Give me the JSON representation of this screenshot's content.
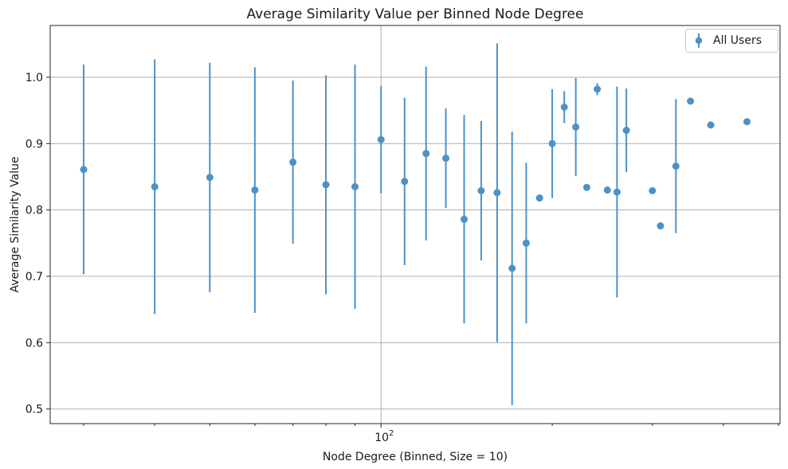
{
  "figure": {
    "title": "Average Similarity Value per Binned Node Degree",
    "xlabel": "Node Degree (Binned, Size = 10)",
    "ylabel": "Average Similarity Value",
    "legend": {
      "label": "All Users"
    }
  },
  "colors": {
    "series": "#4c92c8",
    "grid": "#b0b0b0",
    "spine": "#262626",
    "text": "#1a1a1a"
  },
  "chart_data": {
    "type": "scatter",
    "title": "Average Similarity Value per Binned Node Degree",
    "xlabel": "Node Degree (Binned, Size = 10)",
    "ylabel": "Average Similarity Value",
    "x_scale": "log",
    "xlim": [
      26.2,
      503
    ],
    "ylim": [
      0.478,
      1.078
    ],
    "grid": true,
    "legend_position": "upper right",
    "x_ticks_major": [
      {
        "value": 100,
        "base": "10",
        "exponent": "2"
      }
    ],
    "x_ticks_minor": [
      30,
      40,
      50,
      60,
      70,
      80,
      90,
      200,
      300,
      400,
      500
    ],
    "y_ticks": [
      0.5,
      0.6,
      0.7,
      0.8,
      0.9,
      1.0
    ],
    "series": [
      {
        "name": "All Users",
        "marker": "o",
        "x": [
          30,
          40,
          50,
          60,
          70,
          80,
          90,
          100,
          110,
          120,
          130,
          140,
          150,
          160,
          170,
          180,
          190,
          200,
          210,
          220,
          230,
          240,
          250,
          260,
          270,
          300,
          310,
          330,
          350,
          380,
          440
        ],
        "y": [
          0.861,
          0.835,
          0.849,
          0.83,
          0.872,
          0.838,
          0.835,
          0.906,
          0.843,
          0.885,
          0.878,
          0.786,
          0.829,
          0.826,
          0.712,
          0.75,
          0.818,
          0.9,
          0.955,
          0.925,
          0.834,
          0.982,
          0.83,
          0.827,
          0.92,
          0.829,
          0.776,
          0.866,
          0.964,
          0.928,
          0.933
        ],
        "yerr": [
          0.158,
          0.192,
          0.173,
          0.185,
          0.123,
          0.165,
          0.184,
          0.081,
          0.126,
          0.131,
          0.075,
          0.157,
          0.105,
          0.225,
          0.206,
          0.121,
          0,
          0.082,
          0.024,
          0.074,
          0,
          0.009,
          0,
          0.159,
          0.063,
          0,
          0,
          0.101,
          0,
          0,
          0
        ]
      }
    ]
  }
}
